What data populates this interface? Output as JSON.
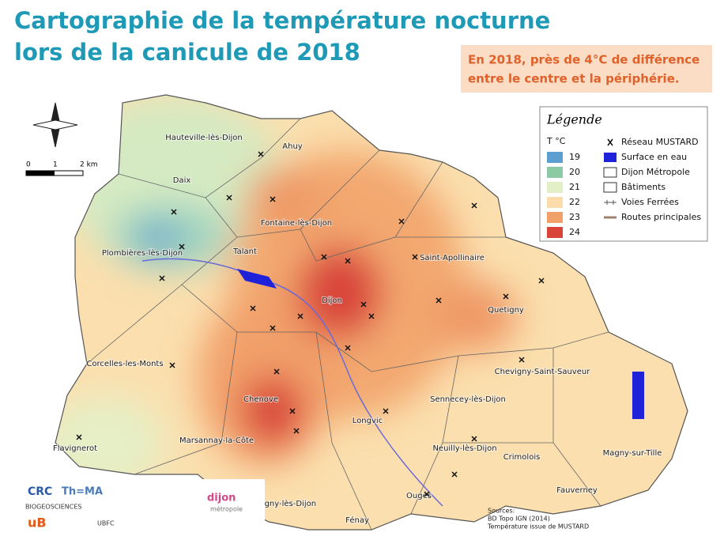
{
  "header": {
    "title": [
      "Cartographie de la température nocturne",
      "lors de la canicule de 2018"
    ],
    "callout": [
      "En 2018, près de 4°C de différence",
      "entre le centre et la périphérie."
    ]
  },
  "legend": {
    "title": "Légende",
    "temp_label": "T °C",
    "temps": [
      19,
      20,
      21,
      22,
      23,
      24
    ],
    "temp_colors": [
      "#5b9fd0",
      "#8ccaa6",
      "#e3f0c6",
      "#fbdcaa",
      "#f2a06a",
      "#d9443a"
    ],
    "items": [
      "Réseau MUSTARD",
      "Surface en eau",
      "Dijon Métropole",
      "Bâtiments",
      "Voies Ferrées",
      "Routes principales"
    ]
  },
  "scale": [
    "0",
    "1",
    "2 km"
  ],
  "places": [
    "Hauteville-lès-Dijon",
    "Ahuy",
    "Daix",
    "Fontaine-lès-Dijon",
    "Plombières-lès-Dijon",
    "Talant",
    "Saint-Apollinaire",
    "Dijon",
    "Quetigny",
    "Corcelles-les-Monts",
    "Chevigny-Saint-Sauveur",
    "Chenove",
    "Sennecey-lès-Dijon",
    "Longvic",
    "Marsannay-la-Côte",
    "Flavignerot",
    "Neuilly-lès-Dijon",
    "Crimolois",
    "Magny-sur-Tille",
    "Perrigny-lès-Dijon",
    "Ouges",
    "Fauverney",
    "Fénay"
  ],
  "sources": [
    "Sources:",
    "BD Topo IGN (2014)",
    "Température issue de MUSTARD"
  ],
  "logos": [
    "CRC",
    "Th=MA",
    "BIOGEOSCIENCES",
    "uB",
    "UBFC",
    "dijon",
    "métropole"
  ]
}
